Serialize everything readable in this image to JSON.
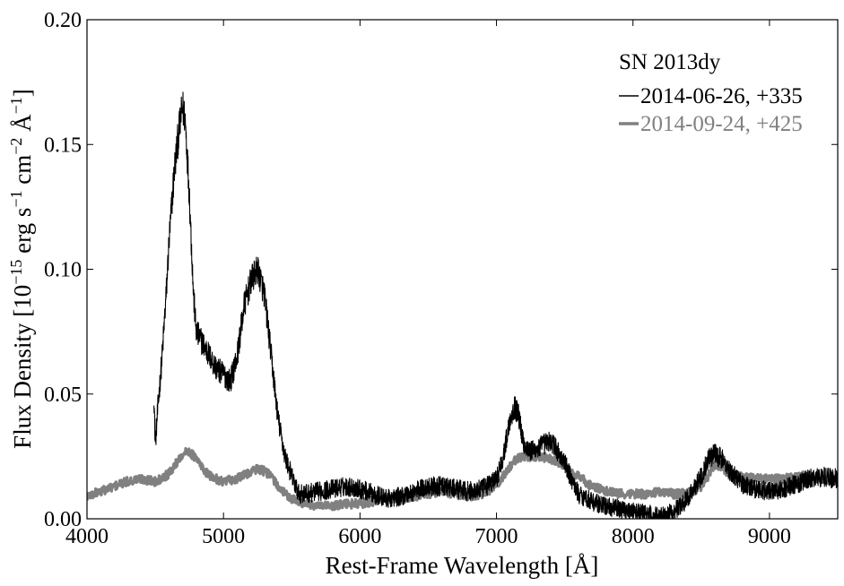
{
  "chart_data": {
    "type": "line",
    "xlabel": "Rest-Frame Wavelength [Å]",
    "ylabel": {
      "base": "Flux Density [10",
      "exp1": "−15",
      "mid1": " erg s",
      "exp2": "−1",
      "mid2": " cm",
      "exp3": "−2",
      "mid3": " Å",
      "exp4": "−1",
      "end": "]"
    },
    "xlim": [
      4000,
      9500
    ],
    "ylim": [
      0.0,
      0.2
    ],
    "xticks": [
      4000,
      5000,
      6000,
      7000,
      8000,
      9000
    ],
    "xtick_labels": [
      "4000",
      "5000",
      "6000",
      "7000",
      "8000",
      "9000"
    ],
    "yticks": [
      0.0,
      0.05,
      0.1,
      0.15,
      0.2
    ],
    "ytick_labels": [
      "0.00",
      "0.05",
      "0.10",
      "0.15",
      "0.20"
    ],
    "grid": false,
    "legend_title": "SN 2013dy",
    "legend_position": "top-right",
    "series": [
      {
        "name": "2014-06-26, +335",
        "color": "#000000",
        "x": [
          4490,
          4500,
          4520,
          4550,
          4580,
          4600,
          4640,
          4680,
          4700,
          4720,
          4750,
          4780,
          4800,
          4850,
          4900,
          4950,
          5000,
          5050,
          5100,
          5150,
          5200,
          5250,
          5300,
          5350,
          5400,
          5450,
          5500,
          5550,
          5600,
          5700,
          5800,
          5900,
          6000,
          6100,
          6200,
          6300,
          6400,
          6500,
          6600,
          6700,
          6800,
          6900,
          7000,
          7050,
          7100,
          7130,
          7160,
          7200,
          7250,
          7300,
          7350,
          7400,
          7450,
          7500,
          7550,
          7600,
          7700,
          7800,
          7900,
          8000,
          8100,
          8200,
          8300,
          8400,
          8500,
          8550,
          8600,
          8650,
          8700,
          8800,
          8900,
          9000,
          9100,
          9200,
          9300,
          9400,
          9500
        ],
        "y": [
          0.05,
          0.03,
          0.045,
          0.065,
          0.09,
          0.11,
          0.14,
          0.158,
          0.165,
          0.16,
          0.13,
          0.09,
          0.075,
          0.07,
          0.065,
          0.06,
          0.058,
          0.055,
          0.065,
          0.085,
          0.095,
          0.1,
          0.09,
          0.065,
          0.04,
          0.025,
          0.017,
          0.01,
          0.01,
          0.011,
          0.012,
          0.013,
          0.012,
          0.01,
          0.008,
          0.009,
          0.011,
          0.013,
          0.013,
          0.012,
          0.011,
          0.012,
          0.016,
          0.025,
          0.04,
          0.045,
          0.042,
          0.03,
          0.027,
          0.028,
          0.03,
          0.031,
          0.027,
          0.022,
          0.016,
          0.01,
          0.007,
          0.005,
          0.004,
          0.003,
          0.002,
          0.001,
          0.003,
          0.008,
          0.017,
          0.024,
          0.026,
          0.024,
          0.02,
          0.014,
          0.012,
          0.011,
          0.012,
          0.014,
          0.016,
          0.017,
          0.016
        ],
        "noise": 0.006
      },
      {
        "name": "2014-09-24, +425",
        "color": "#808080",
        "x": [
          4000,
          4100,
          4200,
          4300,
          4400,
          4500,
          4600,
          4650,
          4700,
          4750,
          4800,
          4850,
          4900,
          5000,
          5100,
          5200,
          5250,
          5300,
          5350,
          5400,
          5450,
          5500,
          5600,
          5700,
          5800,
          5900,
          6000,
          6100,
          6200,
          6300,
          6400,
          6500,
          6600,
          6700,
          6800,
          6900,
          7000,
          7050,
          7100,
          7150,
          7200,
          7300,
          7400,
          7450,
          7500,
          7600,
          7700,
          7800,
          7900,
          8000,
          8100,
          8200,
          8300,
          8400,
          8500,
          8550,
          8600,
          8650,
          8700,
          8800,
          8900,
          9000,
          9100,
          9200,
          9300,
          9400,
          9500
        ],
        "y": [
          0.009,
          0.011,
          0.013,
          0.015,
          0.016,
          0.015,
          0.018,
          0.022,
          0.026,
          0.027,
          0.024,
          0.02,
          0.017,
          0.015,
          0.016,
          0.019,
          0.02,
          0.019,
          0.017,
          0.013,
          0.01,
          0.008,
          0.006,
          0.005,
          0.005,
          0.006,
          0.006,
          0.007,
          0.008,
          0.008,
          0.009,
          0.01,
          0.011,
          0.01,
          0.009,
          0.01,
          0.013,
          0.017,
          0.021,
          0.024,
          0.025,
          0.025,
          0.024,
          0.023,
          0.021,
          0.017,
          0.013,
          0.011,
          0.01,
          0.01,
          0.01,
          0.011,
          0.01,
          0.01,
          0.013,
          0.017,
          0.022,
          0.021,
          0.018,
          0.017,
          0.016,
          0.016,
          0.016,
          0.017,
          0.017,
          0.016,
          0.015
        ],
        "noise": 0.0018
      }
    ]
  }
}
